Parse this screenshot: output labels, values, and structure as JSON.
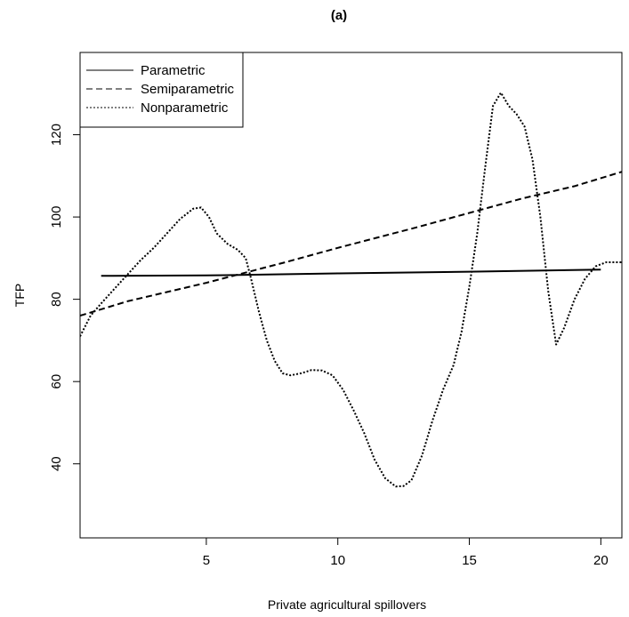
{
  "chart_data": {
    "type": "line",
    "title": "(a)",
    "xlabel": "Private agricultural spillovers",
    "ylabel": "TFP",
    "xlim": [
      0.2,
      20.8
    ],
    "ylim": [
      22.0,
      140.0
    ],
    "x_ticks": [
      5,
      10,
      15,
      20
    ],
    "y_ticks": [
      40,
      60,
      80,
      100,
      120
    ],
    "grid": false,
    "legend_position": "top-left",
    "series": [
      {
        "name": "Parametric",
        "style": "solid",
        "points": [
          [
            1.0,
            85.7
          ],
          [
            5.0,
            85.8
          ],
          [
            10.0,
            86.3
          ],
          [
            15.0,
            86.7
          ],
          [
            20.0,
            87.2
          ]
        ]
      },
      {
        "name": "Semiparametric",
        "style": "dashed",
        "points": [
          [
            0.2,
            76.0
          ],
          [
            2.0,
            79.5
          ],
          [
            5.0,
            84.0
          ],
          [
            8.0,
            89.0
          ],
          [
            10.0,
            92.5
          ],
          [
            13.0,
            97.5
          ],
          [
            15.0,
            101.0
          ],
          [
            17.0,
            104.5
          ],
          [
            19.0,
            107.5
          ],
          [
            20.8,
            111.0
          ]
        ]
      },
      {
        "name": "Nonparametric",
        "style": "dotted",
        "points": [
          [
            0.2,
            71.0
          ],
          [
            0.6,
            76.0
          ],
          [
            1.0,
            79.0
          ],
          [
            1.5,
            82.5
          ],
          [
            2.0,
            86.0
          ],
          [
            2.5,
            89.5
          ],
          [
            3.0,
            92.5
          ],
          [
            3.5,
            96.0
          ],
          [
            4.0,
            99.5
          ],
          [
            4.5,
            102.0
          ],
          [
            4.8,
            102.3
          ],
          [
            5.1,
            100.0
          ],
          [
            5.4,
            96.0
          ],
          [
            5.8,
            93.5
          ],
          [
            6.2,
            92.0
          ],
          [
            6.5,
            90.0
          ],
          [
            6.7,
            85.0
          ],
          [
            7.0,
            77.0
          ],
          [
            7.3,
            70.0
          ],
          [
            7.6,
            65.0
          ],
          [
            7.9,
            62.0
          ],
          [
            8.2,
            61.5
          ],
          [
            8.6,
            62.0
          ],
          [
            9.0,
            62.8
          ],
          [
            9.4,
            62.7
          ],
          [
            9.8,
            61.5
          ],
          [
            10.2,
            58.0
          ],
          [
            10.6,
            53.0
          ],
          [
            11.0,
            47.5
          ],
          [
            11.4,
            41.0
          ],
          [
            11.8,
            36.5
          ],
          [
            12.2,
            34.5
          ],
          [
            12.5,
            34.6
          ],
          [
            12.8,
            36.0
          ],
          [
            13.2,
            42.0
          ],
          [
            13.6,
            50.5
          ],
          [
            14.0,
            58.0
          ],
          [
            14.4,
            64.0
          ],
          [
            14.7,
            72.0
          ],
          [
            15.0,
            83.0
          ],
          [
            15.3,
            96.0
          ],
          [
            15.6,
            112.0
          ],
          [
            15.9,
            127.0
          ],
          [
            16.2,
            130.2
          ],
          [
            16.5,
            127.0
          ],
          [
            16.8,
            125.0
          ],
          [
            17.1,
            122.0
          ],
          [
            17.4,
            114.0
          ],
          [
            17.7,
            100.0
          ],
          [
            18.0,
            82.0
          ],
          [
            18.3,
            69.0
          ],
          [
            18.6,
            73.0
          ],
          [
            19.0,
            80.0
          ],
          [
            19.4,
            85.0
          ],
          [
            19.8,
            88.0
          ],
          [
            20.2,
            89.0
          ],
          [
            20.8,
            89.0
          ]
        ]
      }
    ]
  }
}
